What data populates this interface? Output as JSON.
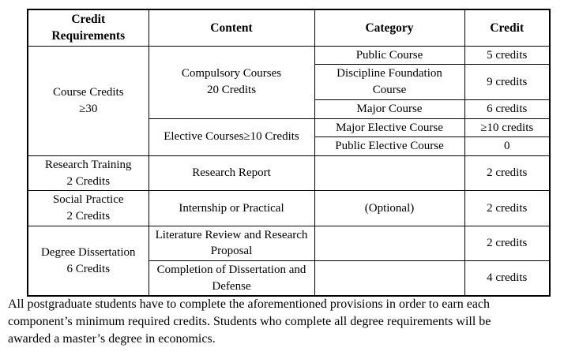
{
  "table": {
    "headers": [
      "Credit\nRequirements",
      "Content",
      "Category",
      "Credit"
    ],
    "course_credits": {
      "requirement": "Course Credits\n≥30",
      "compulsory": {
        "content": "Compulsory Courses\n20 Credits",
        "rows": [
          {
            "category": "Public Course",
            "credit": "5 credits"
          },
          {
            "category": "Discipline Foundation\nCourse",
            "credit": "9 credits"
          },
          {
            "category": "Major Course",
            "credit": "6 credits"
          }
        ]
      },
      "elective": {
        "content": "Elective Courses≥10 Credits",
        "rows": [
          {
            "category": "Major Elective Course",
            "credit": "≥10 credits"
          },
          {
            "category": "Public Elective Course",
            "credit": "0"
          }
        ]
      }
    },
    "research_training": {
      "requirement": "Research Training\n2 Credits",
      "content": "Research Report",
      "category": "",
      "credit": "2 credits"
    },
    "social_practice": {
      "requirement": "Social Practice\n2 Credits",
      "content": "Internship or Practical",
      "category": "(Optional)",
      "credit": "2 credits"
    },
    "degree_dissertation": {
      "requirement": "Degree Dissertation\n6 Credits",
      "rows": [
        {
          "content": "Literature Review and Research\nProposal",
          "category": "",
          "credit": "2 credits"
        },
        {
          "content": "Completion of Dissertation and\nDefense",
          "category": "",
          "credit": "4 credits"
        }
      ]
    }
  },
  "note": {
    "text": "All postgraduate students have to complete the aforementioned provisions in order to earn each\ncomponent’s minimum required credits. Students who complete all degree requirements will be\nawarded a master’s degree in economics."
  }
}
